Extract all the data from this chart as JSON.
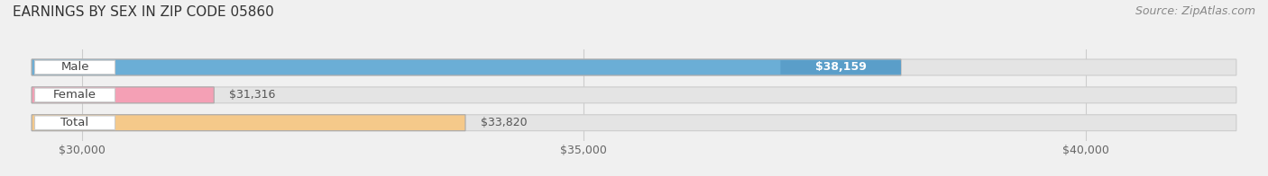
{
  "title": "EARNINGS BY SEX IN ZIP CODE 05860",
  "source": "Source: ZipAtlas.com",
  "categories": [
    "Male",
    "Female",
    "Total"
  ],
  "values": [
    38159,
    31316,
    33820
  ],
  "bar_colors": [
    "#6baed6",
    "#f4a0b5",
    "#f5c98a"
  ],
  "value_labels": [
    "$38,159",
    "$31,316",
    "$33,820"
  ],
  "value_label_on_bar": [
    true,
    false,
    false
  ],
  "value_label_colors": [
    "white",
    "#555555",
    "#555555"
  ],
  "value_badge_bg": [
    "#5a9ec9",
    null,
    null
  ],
  "xmin": 29500,
  "xmax": 41500,
  "xticks": [
    30000,
    35000,
    40000
  ],
  "xtick_labels": [
    "$30,000",
    "$35,000",
    "$40,000"
  ],
  "background_color": "#f0f0f0",
  "bar_bg_color": "#e4e4e4",
  "bar_height": 0.58,
  "title_fontsize": 11,
  "label_fontsize": 9.5,
  "value_fontsize": 9,
  "tick_fontsize": 9,
  "source_fontsize": 9
}
